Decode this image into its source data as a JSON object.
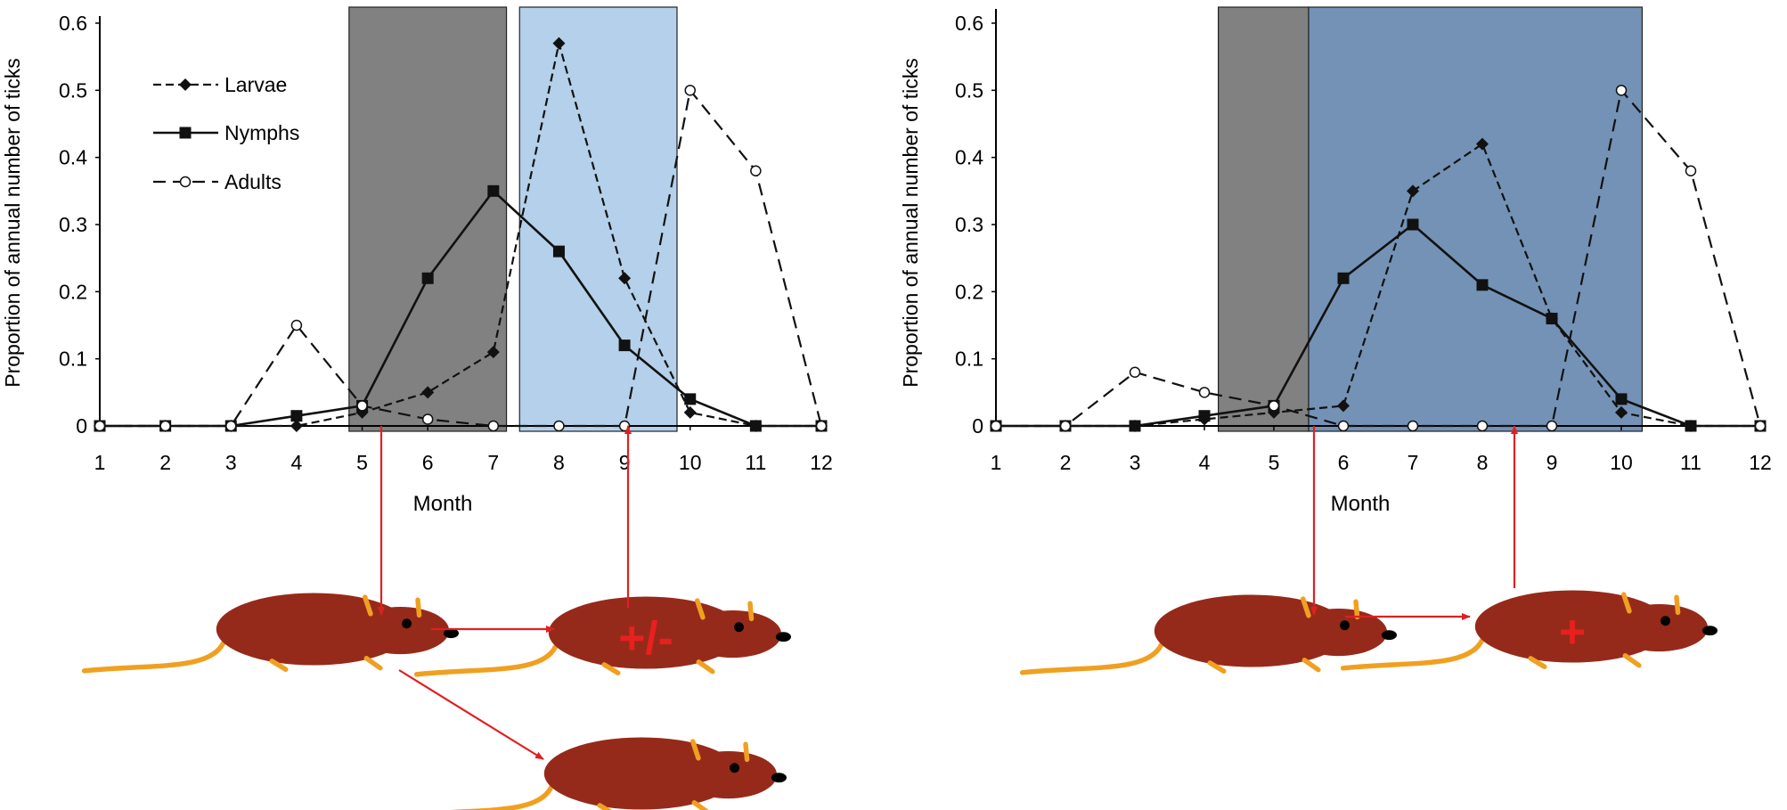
{
  "colors": {
    "mouse_body": "#962a1a",
    "mouse_tail": "#f0a020",
    "arrow": "#e02020",
    "shade_dark": "#7a7a7a",
    "shade_light_blue": "#b4d0ea",
    "shade_dark_blue": "#6b8cb2",
    "axis": "#000000"
  },
  "icons": [
    "mouse-illustration"
  ],
  "chart_data": [
    {
      "type": "line",
      "title": "",
      "xlabel": "Month",
      "ylabel": "Proportion of annual number of ticks",
      "xlim": [
        1,
        12
      ],
      "ylim": [
        0,
        0.6
      ],
      "categories": [
        "1",
        "2",
        "3",
        "4",
        "5",
        "6",
        "7",
        "8",
        "9",
        "10",
        "11",
        "12"
      ],
      "yticks": [
        "0",
        "0.1",
        "0.2",
        "0.3",
        "0.4",
        "0.5",
        "0.6"
      ],
      "legend": {
        "position": "top-left",
        "entries": [
          "Larvae",
          "Nymphs",
          "Adults"
        ]
      },
      "series": [
        {
          "name": "Larvae",
          "marker": "filled-diamond",
          "line": "short-dash",
          "values": [
            0,
            0,
            0,
            0,
            0.02,
            0.05,
            0.11,
            0.57,
            0.22,
            0.02,
            0,
            0
          ]
        },
        {
          "name": "Nymphs",
          "marker": "filled-square",
          "line": "solid",
          "values": [
            0,
            0,
            0,
            0.015,
            0.03,
            0.22,
            0.35,
            0.26,
            0.12,
            0.04,
            0,
            0
          ]
        },
        {
          "name": "Adults",
          "marker": "open-circle",
          "line": "long-dash",
          "values": [
            0,
            0,
            0,
            0.15,
            0.03,
            0.01,
            0,
            0,
            0,
            0.5,
            0.38,
            0
          ]
        }
      ],
      "shaded_regions": [
        {
          "from_month": 4.8,
          "to_month": 7.2,
          "color": "#7a7a7a"
        },
        {
          "from_month": 7.4,
          "to_month": 9.8,
          "color": "#b4d0ea"
        }
      ],
      "infection_labels": [
        "+/-"
      ]
    },
    {
      "type": "line",
      "title": "",
      "xlabel": "Month",
      "ylabel": "Proportion of annual number of ticks",
      "xlim": [
        1,
        12
      ],
      "ylim": [
        0,
        0.6
      ],
      "categories": [
        "1",
        "2",
        "3",
        "4",
        "5",
        "6",
        "7",
        "8",
        "9",
        "10",
        "11",
        "12"
      ],
      "yticks": [
        "0",
        "0.1",
        "0.2",
        "0.3",
        "0.4",
        "0.5",
        "0.6"
      ],
      "series": [
        {
          "name": "Larvae",
          "marker": "filled-diamond",
          "line": "short-dash",
          "values": [
            0,
            0,
            0,
            0.01,
            0.02,
            0.03,
            0.35,
            0.42,
            0.16,
            0.02,
            0,
            0
          ]
        },
        {
          "name": "Nymphs",
          "marker": "filled-square",
          "line": "solid",
          "values": [
            0,
            0,
            0,
            0.015,
            0.03,
            0.22,
            0.3,
            0.21,
            0.16,
            0.04,
            0,
            0
          ]
        },
        {
          "name": "Adults",
          "marker": "open-circle",
          "line": "long-dash",
          "values": [
            0,
            0,
            0.08,
            0.05,
            0.03,
            0,
            0,
            0,
            0,
            0.5,
            0.38,
            0
          ]
        }
      ],
      "shaded_regions": [
        {
          "from_month": 4.2,
          "to_month": 5.5,
          "color": "#7a7a7a"
        },
        {
          "from_month": 5.5,
          "to_month": 10.3,
          "color": "#6b8cb2"
        }
      ],
      "infection_labels": [
        "+"
      ]
    }
  ]
}
